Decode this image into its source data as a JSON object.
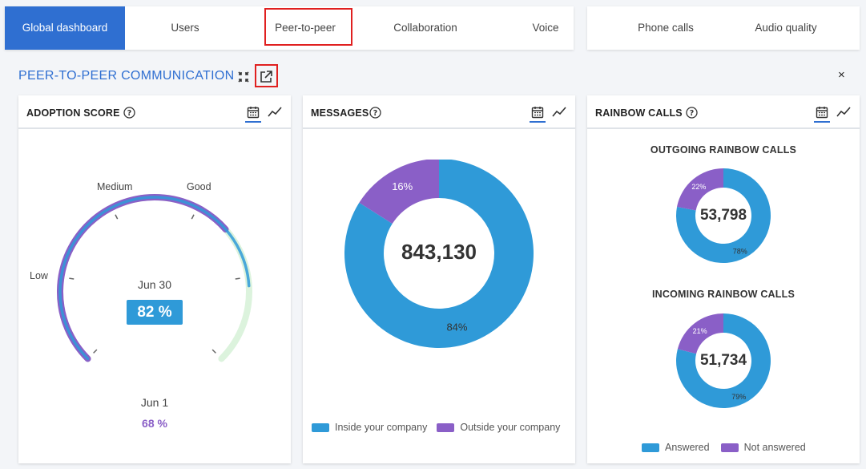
{
  "tabs": [
    {
      "label": "Global dashboard",
      "active": true
    },
    {
      "label": "Users"
    },
    {
      "label": "Peer-to-peer"
    },
    {
      "label": "Collaboration"
    },
    {
      "label": "Voice"
    },
    {
      "label": "Phone calls"
    },
    {
      "label": "Audio quality"
    }
  ],
  "section": {
    "title": "PEER-TO-PEER COMMUNICATION",
    "collapse_icon": "collapse-icon",
    "popout_icon": "open-external-icon",
    "close_label": "×"
  },
  "colors": {
    "accent": "#2f6fd1",
    "blue": "#2f9ad8",
    "purple": "#8a5fc7",
    "light_green": "#dcf3dd",
    "highlight": "#e02020"
  },
  "adoption": {
    "title": "ADOPTION SCORE",
    "levels": [
      "Low",
      "Medium",
      "Good"
    ],
    "current_date": "Jun 30",
    "current_value": "82 %",
    "current_fraction": 0.82,
    "previous_date": "Jun 1",
    "previous_value": "68 %",
    "previous_fraction": 0.68
  },
  "messages": {
    "title": "MESSAGES",
    "total": "843,130",
    "slices": [
      {
        "name": "Inside your company",
        "percent": 84,
        "label": "84%"
      },
      {
        "name": "Outside your company",
        "percent": 16,
        "label": "16%"
      }
    ]
  },
  "rainbow": {
    "title": "RAINBOW CALLS",
    "outgoing": {
      "title": "OUTGOING RAINBOW CALLS",
      "total": "53,798",
      "answered": 78,
      "not_answered": 22,
      "answered_label": "78%",
      "not_answered_label": "22%"
    },
    "incoming": {
      "title": "INCOMING RAINBOW CALLS",
      "total": "51,734",
      "answered": 79,
      "not_answered": 21,
      "answered_label": "79%",
      "not_answered_label": "21%"
    },
    "legend": [
      "Answered",
      "Not answered"
    ]
  }
}
